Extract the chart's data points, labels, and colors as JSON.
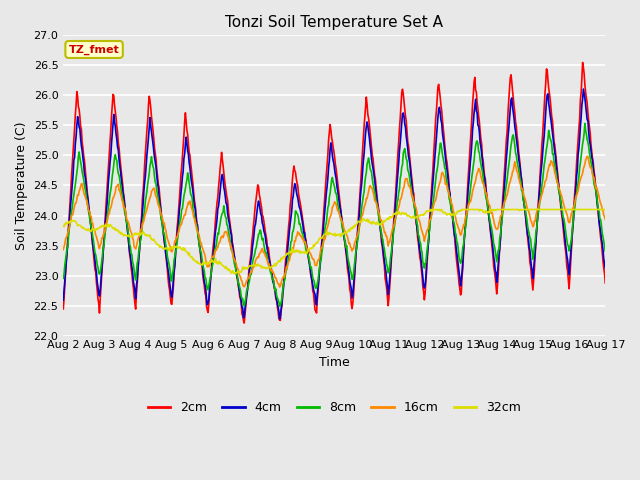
{
  "title": "Tonzi Soil Temperature Set A",
  "xlabel": "Time",
  "ylabel": "Soil Temperature (C)",
  "ylim": [
    22.0,
    27.0
  ],
  "yticks": [
    22.0,
    22.5,
    23.0,
    23.5,
    24.0,
    24.5,
    25.0,
    25.5,
    26.0,
    26.5,
    27.0
  ],
  "xtick_labels": [
    "Aug 2",
    "Aug 3",
    "Aug 4",
    "Aug 5",
    "Aug 6",
    "Aug 7",
    "Aug 8",
    "Aug 9",
    "Aug 10",
    "Aug 11",
    "Aug 12",
    "Aug 13",
    "Aug 14",
    "Aug 15",
    "Aug 16",
    "Aug 17"
  ],
  "fig_bg": "#e8e8e8",
  "plot_bg": "#e8e8e8",
  "line_colors": {
    "2cm": "#ff0000",
    "4cm": "#0000cc",
    "8cm": "#00bb00",
    "16cm": "#ff8800",
    "32cm": "#dddd00"
  },
  "annotation_text": "TZ_fmet",
  "annotation_color": "#cc0000",
  "annotation_bg": "#ffffcc",
  "annotation_border": "#bbbb00",
  "title_fontsize": 11,
  "axis_label_fontsize": 9,
  "tick_fontsize": 8
}
